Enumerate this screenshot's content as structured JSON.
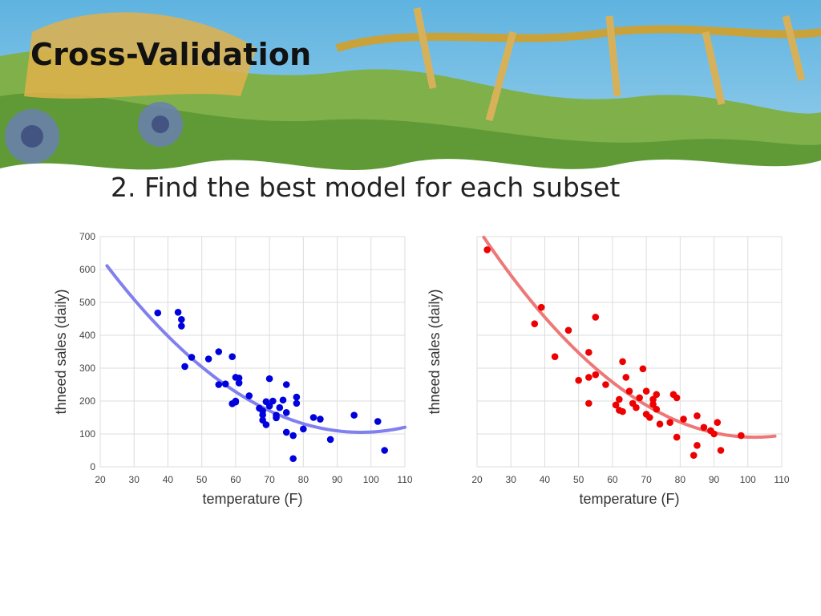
{
  "slide": {
    "title": "Cross-Validation",
    "subtitle": "2. Find the best model for each subset"
  },
  "chart_data": [
    {
      "type": "scatter",
      "title": "",
      "xlabel": "temperature (F)",
      "ylabel": "thneed sales (daily)",
      "xlim": [
        20,
        110
      ],
      "ylim": [
        0,
        700
      ],
      "xticks": [
        "20",
        "30",
        "40",
        "50",
        "60",
        "70",
        "80",
        "90",
        "100",
        "110"
      ],
      "yticks": [
        "0",
        "100",
        "200",
        "300",
        "400",
        "500",
        "600",
        "700"
      ],
      "grid": true,
      "legend": "none",
      "color": "#0000dd",
      "fit_color": "#8080ee",
      "points": [
        [
          37,
          468
        ],
        [
          43,
          470
        ],
        [
          44,
          448
        ],
        [
          44,
          428
        ],
        [
          45,
          305
        ],
        [
          47,
          333
        ],
        [
          52,
          328
        ],
        [
          55,
          350
        ],
        [
          55,
          250
        ],
        [
          57,
          252
        ],
        [
          59,
          335
        ],
        [
          59,
          192
        ],
        [
          60,
          200
        ],
        [
          60,
          272
        ],
        [
          60,
          197
        ],
        [
          61,
          270
        ],
        [
          61,
          255
        ],
        [
          64,
          216
        ],
        [
          67,
          178
        ],
        [
          68,
          158
        ],
        [
          68,
          142
        ],
        [
          68,
          170
        ],
        [
          69,
          128
        ],
        [
          69,
          198
        ],
        [
          70,
          268
        ],
        [
          70,
          185
        ],
        [
          71,
          200
        ],
        [
          72,
          157
        ],
        [
          72,
          149
        ],
        [
          73,
          180
        ],
        [
          74,
          203
        ],
        [
          75,
          250
        ],
        [
          75,
          165
        ],
        [
          75,
          105
        ],
        [
          77,
          95
        ],
        [
          77,
          25
        ],
        [
          78,
          212
        ],
        [
          78,
          193
        ],
        [
          80,
          115
        ],
        [
          83,
          150
        ],
        [
          85,
          145
        ],
        [
          88,
          83
        ],
        [
          95,
          157
        ],
        [
          102,
          138
        ],
        [
          104,
          50
        ]
      ],
      "fit": {
        "x": [
          22,
          110
        ],
        "model": "quadratic",
        "a": 0.09,
        "vertex_x": 97,
        "vertex_y": 105
      }
    },
    {
      "type": "scatter",
      "title": "",
      "xlabel": "temperature (F)",
      "ylabel": "thneed sales (daily)",
      "xlim": [
        20,
        110
      ],
      "ylim": [
        0,
        700
      ],
      "xticks": [
        "20",
        "30",
        "40",
        "50",
        "60",
        "70",
        "80",
        "90",
        "100",
        "110"
      ],
      "yticks": [],
      "grid": true,
      "legend": "none",
      "color": "#ee0000",
      "fit_color": "#ee7777",
      "points": [
        [
          23,
          660
        ],
        [
          37,
          435
        ],
        [
          39,
          485
        ],
        [
          43,
          335
        ],
        [
          47,
          415
        ],
        [
          50,
          263
        ],
        [
          53,
          348
        ],
        [
          53,
          193
        ],
        [
          53,
          272
        ],
        [
          55,
          280
        ],
        [
          55,
          455
        ],
        [
          58,
          250
        ],
        [
          61,
          188
        ],
        [
          62,
          205
        ],
        [
          62,
          172
        ],
        [
          63,
          320
        ],
        [
          63,
          168
        ],
        [
          64,
          272
        ],
        [
          65,
          230
        ],
        [
          66,
          193
        ],
        [
          67,
          180
        ],
        [
          68,
          210
        ],
        [
          69,
          298
        ],
        [
          70,
          160
        ],
        [
          70,
          230
        ],
        [
          71,
          150
        ],
        [
          72,
          190
        ],
        [
          72,
          205
        ],
        [
          73,
          220
        ],
        [
          73,
          175
        ],
        [
          74,
          130
        ],
        [
          77,
          135
        ],
        [
          78,
          220
        ],
        [
          79,
          90
        ],
        [
          79,
          210
        ],
        [
          81,
          145
        ],
        [
          84,
          35
        ],
        [
          85,
          155
        ],
        [
          85,
          65
        ],
        [
          87,
          120
        ],
        [
          89,
          110
        ],
        [
          90,
          100
        ],
        [
          91,
          135
        ],
        [
          92,
          50
        ],
        [
          98,
          95
        ]
      ],
      "fit": {
        "x": [
          22,
          108
        ],
        "model": "quadratic",
        "a": 0.095,
        "vertex_x": 102,
        "vertex_y": 90
      }
    }
  ]
}
